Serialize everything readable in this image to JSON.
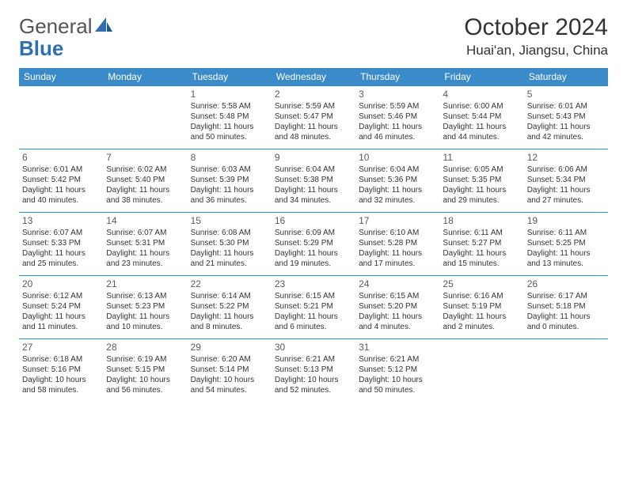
{
  "logo": {
    "text1": "General",
    "text2": "Blue"
  },
  "header": {
    "month_title": "October 2024",
    "location": "Huai'an, Jiangsu, China"
  },
  "colors": {
    "header_bg": "#3b8bc9",
    "header_text": "#ffffff",
    "cell_border": "#3b8bc9",
    "body_text": "#333333",
    "daynum_text": "#5a5a5a"
  },
  "weekdays": [
    "Sunday",
    "Monday",
    "Tuesday",
    "Wednesday",
    "Thursday",
    "Friday",
    "Saturday"
  ],
  "days": {
    "1": {
      "sunrise": "5:58 AM",
      "sunset": "5:48 PM",
      "daylight": "11 hours and 50 minutes."
    },
    "2": {
      "sunrise": "5:59 AM",
      "sunset": "5:47 PM",
      "daylight": "11 hours and 48 minutes."
    },
    "3": {
      "sunrise": "5:59 AM",
      "sunset": "5:46 PM",
      "daylight": "11 hours and 46 minutes."
    },
    "4": {
      "sunrise": "6:00 AM",
      "sunset": "5:44 PM",
      "daylight": "11 hours and 44 minutes."
    },
    "5": {
      "sunrise": "6:01 AM",
      "sunset": "5:43 PM",
      "daylight": "11 hours and 42 minutes."
    },
    "6": {
      "sunrise": "6:01 AM",
      "sunset": "5:42 PM",
      "daylight": "11 hours and 40 minutes."
    },
    "7": {
      "sunrise": "6:02 AM",
      "sunset": "5:40 PM",
      "daylight": "11 hours and 38 minutes."
    },
    "8": {
      "sunrise": "6:03 AM",
      "sunset": "5:39 PM",
      "daylight": "11 hours and 36 minutes."
    },
    "9": {
      "sunrise": "6:04 AM",
      "sunset": "5:38 PM",
      "daylight": "11 hours and 34 minutes."
    },
    "10": {
      "sunrise": "6:04 AM",
      "sunset": "5:36 PM",
      "daylight": "11 hours and 32 minutes."
    },
    "11": {
      "sunrise": "6:05 AM",
      "sunset": "5:35 PM",
      "daylight": "11 hours and 29 minutes."
    },
    "12": {
      "sunrise": "6:06 AM",
      "sunset": "5:34 PM",
      "daylight": "11 hours and 27 minutes."
    },
    "13": {
      "sunrise": "6:07 AM",
      "sunset": "5:33 PM",
      "daylight": "11 hours and 25 minutes."
    },
    "14": {
      "sunrise": "6:07 AM",
      "sunset": "5:31 PM",
      "daylight": "11 hours and 23 minutes."
    },
    "15": {
      "sunrise": "6:08 AM",
      "sunset": "5:30 PM",
      "daylight": "11 hours and 21 minutes."
    },
    "16": {
      "sunrise": "6:09 AM",
      "sunset": "5:29 PM",
      "daylight": "11 hours and 19 minutes."
    },
    "17": {
      "sunrise": "6:10 AM",
      "sunset": "5:28 PM",
      "daylight": "11 hours and 17 minutes."
    },
    "18": {
      "sunrise": "6:11 AM",
      "sunset": "5:27 PM",
      "daylight": "11 hours and 15 minutes."
    },
    "19": {
      "sunrise": "6:11 AM",
      "sunset": "5:25 PM",
      "daylight": "11 hours and 13 minutes."
    },
    "20": {
      "sunrise": "6:12 AM",
      "sunset": "5:24 PM",
      "daylight": "11 hours and 11 minutes."
    },
    "21": {
      "sunrise": "6:13 AM",
      "sunset": "5:23 PM",
      "daylight": "11 hours and 10 minutes."
    },
    "22": {
      "sunrise": "6:14 AM",
      "sunset": "5:22 PM",
      "daylight": "11 hours and 8 minutes."
    },
    "23": {
      "sunrise": "6:15 AM",
      "sunset": "5:21 PM",
      "daylight": "11 hours and 6 minutes."
    },
    "24": {
      "sunrise": "6:15 AM",
      "sunset": "5:20 PM",
      "daylight": "11 hours and 4 minutes."
    },
    "25": {
      "sunrise": "6:16 AM",
      "sunset": "5:19 PM",
      "daylight": "11 hours and 2 minutes."
    },
    "26": {
      "sunrise": "6:17 AM",
      "sunset": "5:18 PM",
      "daylight": "11 hours and 0 minutes."
    },
    "27": {
      "sunrise": "6:18 AM",
      "sunset": "5:16 PM",
      "daylight": "10 hours and 58 minutes."
    },
    "28": {
      "sunrise": "6:19 AM",
      "sunset": "5:15 PM",
      "daylight": "10 hours and 56 minutes."
    },
    "29": {
      "sunrise": "6:20 AM",
      "sunset": "5:14 PM",
      "daylight": "10 hours and 54 minutes."
    },
    "30": {
      "sunrise": "6:21 AM",
      "sunset": "5:13 PM",
      "daylight": "10 hours and 52 minutes."
    },
    "31": {
      "sunrise": "6:21 AM",
      "sunset": "5:12 PM",
      "daylight": "10 hours and 50 minutes."
    }
  },
  "layout": {
    "first_day_column": 2,
    "total_days": 31,
    "labels": {
      "sunrise": "Sunrise:",
      "sunset": "Sunset:",
      "daylight": "Daylight:"
    }
  }
}
